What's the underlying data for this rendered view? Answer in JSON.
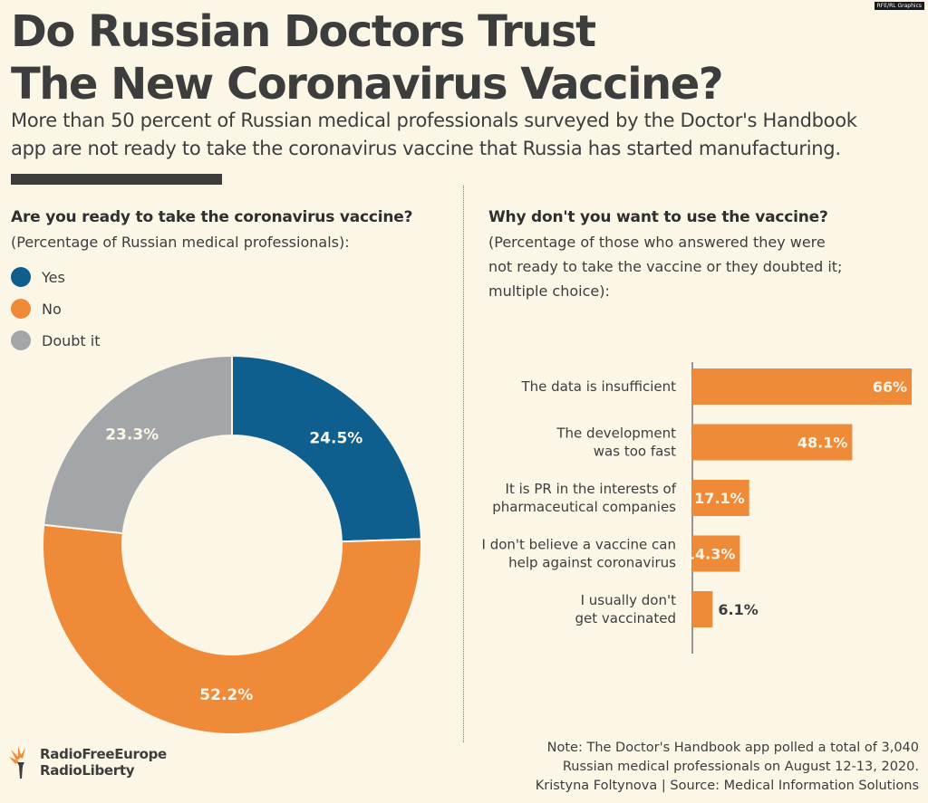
{
  "credit_tag": "RFE/RL Graphics",
  "title": [
    "Do Russian Doctors Trust",
    "The New Coronavirus Vaccine?"
  ],
  "subtitle": [
    "More than 50 percent of Russian medical professionals surveyed by the Doctor's Handbook",
    "app are not ready to take the coronavirus vaccine that Russia has started manufacturing."
  ],
  "chart_data": [
    {
      "type": "pie",
      "style": "donut",
      "title": "Are you ready to take the coronavirus vaccine?",
      "subtitle": "(Percentage of Russian medical professionals):",
      "legend_position": "top-left",
      "labels": [
        "Yes",
        "No",
        "Doubt it"
      ],
      "values": [
        24.5,
        52.2,
        23.3
      ],
      "value_labels": [
        "24.5%",
        "52.2%",
        "23.3%"
      ],
      "colors": [
        "#0e5e8e",
        "#ef8a39",
        "#a3a6a9"
      ]
    },
    {
      "type": "bar",
      "orientation": "horizontal",
      "title": "Why don't you want to use the vaccine?",
      "subtitle": [
        "(Percentage of those who answered they were",
        "not ready to take the vaccine or they doubted it;",
        "multiple choice):"
      ],
      "categories": [
        [
          "The data is insufficient"
        ],
        [
          "The development",
          "was too fast"
        ],
        [
          "It is PR in the interests of",
          "pharmaceutical companies"
        ],
        [
          "I don't believe a vaccine can",
          "help against coronavirus"
        ],
        [
          "I usually don't",
          "get vaccinated"
        ]
      ],
      "values": [
        66,
        48.1,
        17.1,
        14.3,
        6.1
      ],
      "value_labels": [
        "66%",
        "48.1%",
        "17.1%",
        "14.3%",
        "6.1%"
      ],
      "color": "#ef8a39",
      "xlim": [
        0,
        66
      ]
    }
  ],
  "logo": {
    "line1": "RadioFreeEurope",
    "line2": "RadioLiberty"
  },
  "note": [
    "Note: The Doctor's Handbook app polled a total of 3,040",
    "Russian medical professionals on August 12-13, 2020.",
    "Kristyna Foltynova | Source: Medical Information Solutions"
  ],
  "colors": {
    "background": "#fbf6e6",
    "text": "#3d3d3d",
    "accent": "#ef8a39"
  }
}
